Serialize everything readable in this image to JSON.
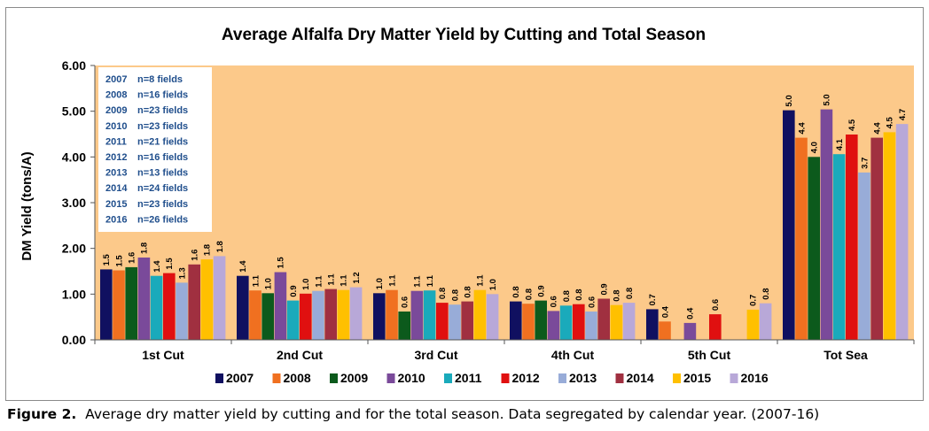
{
  "chart_data": {
    "type": "bar",
    "title": "Average Alfalfa Dry Matter Yield by Cutting and Total Season",
    "ylabel": "DM  Yield (tons/A)",
    "xlabel": "",
    "ylim": [
      0,
      6
    ],
    "yticks": [
      "0.00",
      "1.00",
      "2.00",
      "3.00",
      "4.00",
      "5.00",
      "6.00"
    ],
    "grid": false,
    "legend_position": "bottom",
    "categories": [
      "1st Cut",
      "2nd Cut",
      "3rd Cut",
      "4th Cut",
      "5th Cut",
      "Tot Sea"
    ],
    "series": [
      {
        "name": "2007",
        "color": "#101060",
        "values": [
          1.54,
          1.4,
          1.02,
          0.84,
          0.67,
          5.02
        ]
      },
      {
        "name": "2008",
        "color": "#f07020",
        "values": [
          1.52,
          1.08,
          1.09,
          0.79,
          0.4,
          4.42
        ]
      },
      {
        "name": "2009",
        "color": "#0c5a1c",
        "values": [
          1.59,
          1.02,
          0.62,
          0.86,
          null,
          4.0
        ]
      },
      {
        "name": "2010",
        "color": "#7a4a9a",
        "values": [
          1.8,
          1.48,
          1.07,
          0.63,
          0.37,
          5.04
        ]
      },
      {
        "name": "2011",
        "color": "#1aaabb",
        "values": [
          1.4,
          0.86,
          1.08,
          0.75,
          null,
          4.06
        ]
      },
      {
        "name": "2012",
        "color": "#e01010",
        "values": [
          1.46,
          1.01,
          0.81,
          0.78,
          0.56,
          4.49
        ]
      },
      {
        "name": "2013",
        "color": "#98acd8",
        "values": [
          1.25,
          1.07,
          0.77,
          0.62,
          null,
          3.66
        ]
      },
      {
        "name": "2014",
        "color": "#a03040",
        "values": [
          1.65,
          1.11,
          0.84,
          0.9,
          null,
          4.42
        ]
      },
      {
        "name": "2015",
        "color": "#ffc000",
        "values": [
          1.76,
          1.09,
          1.09,
          0.76,
          0.66,
          4.54
        ]
      },
      {
        "name": "2016",
        "color": "#b8a8d8",
        "values": [
          1.83,
          1.15,
          1.0,
          0.81,
          0.8,
          4.72
        ]
      }
    ],
    "data_labels": [
      [
        "1.5",
        "1.5",
        "1.6",
        "1.8",
        "1.4",
        "1.5",
        "1.3",
        "1.6",
        "1.8",
        "1.8"
      ],
      [
        "1.4",
        "1.1",
        "1.0",
        "1.5",
        "0.9",
        "1.0",
        "1.1",
        "1.1",
        "1.1",
        "1.2"
      ],
      [
        "1.0",
        "1.1",
        "0.6",
        "1.1",
        "1.1",
        "0.8",
        "0.8",
        "0.8",
        "1.1",
        "1.0"
      ],
      [
        "0.8",
        "0.8",
        "0.9",
        "0.6",
        "0.8",
        "0.8",
        "0.6",
        "0.9",
        "0.8",
        "0.8"
      ],
      [
        "0.7",
        "0.4",
        "",
        "0.4",
        "",
        "0.6",
        "",
        "",
        "0.7",
        "0.8"
      ],
      [
        "5.0",
        "4.4",
        "4.0",
        "5.0",
        "4.1",
        "4.5",
        "3.7",
        "4.4",
        "4.5",
        "4.7"
      ]
    ],
    "annotation_box": [
      {
        "year": "2007",
        "fields": "n=8 fields"
      },
      {
        "year": "2008",
        "fields": "n=16 fields"
      },
      {
        "year": "2009",
        "fields": "n=23 fields"
      },
      {
        "year": "2010",
        "fields": "n=23 fields"
      },
      {
        "year": "2011",
        "fields": "n=21 fields"
      },
      {
        "year": "2012",
        "fields": "n=16 fields"
      },
      {
        "year": "2013",
        "fields": "n=13 fields"
      },
      {
        "year": "2014",
        "fields": "n=24 fields"
      },
      {
        "year": "2015",
        "fields": "n=23 fields"
      },
      {
        "year": "2016",
        "fields": "n=26 fields"
      }
    ],
    "plot_background": "#fcc98a",
    "annotation_text_color": "#1f4e8c"
  },
  "caption": {
    "label": "Figure 2.",
    "text": "Average dry matter yield by cutting and for the total season. Data segregated by calendar year. (2007-16)"
  }
}
